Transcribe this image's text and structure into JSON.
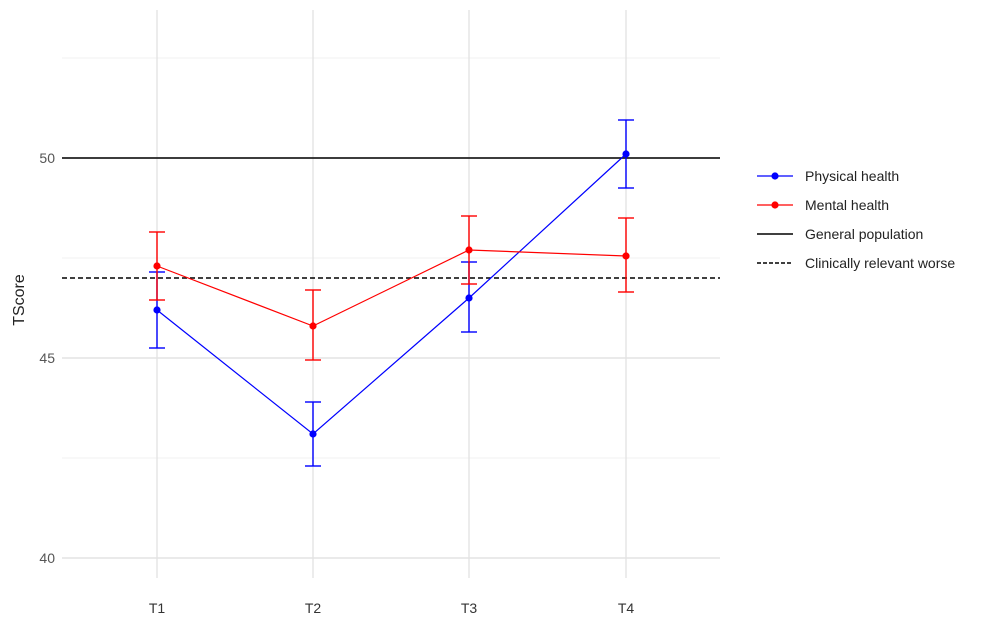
{
  "chart_data": {
    "type": "line",
    "title": "",
    "xlabel": "",
    "ylabel": "TScore",
    "categories": [
      "T1",
      "T2",
      "T3",
      "T4"
    ],
    "ylim": [
      39.5,
      53.7
    ],
    "yticks": [
      40,
      45,
      50
    ],
    "grid": true,
    "legend_position": "right",
    "series": [
      {
        "name": "Physical health",
        "color": "#0000ff",
        "values": [
          46.2,
          43.1,
          46.5,
          50.1
        ],
        "error_low": [
          45.25,
          42.3,
          45.65,
          49.25
        ],
        "error_high": [
          47.15,
          43.9,
          47.4,
          50.95
        ]
      },
      {
        "name": "Mental health",
        "color": "#ff0000",
        "values": [
          47.3,
          45.8,
          47.7,
          47.55
        ],
        "error_low": [
          46.45,
          44.95,
          46.85,
          46.65
        ],
        "error_high": [
          48.15,
          46.7,
          48.55,
          48.5
        ]
      }
    ],
    "reference_lines": [
      {
        "name": "General population",
        "value": 50,
        "style": "solid",
        "color": "#000000"
      },
      {
        "name": "Clinically relevant worse",
        "value": 47,
        "style": "dashed",
        "color": "#000000"
      }
    ]
  }
}
